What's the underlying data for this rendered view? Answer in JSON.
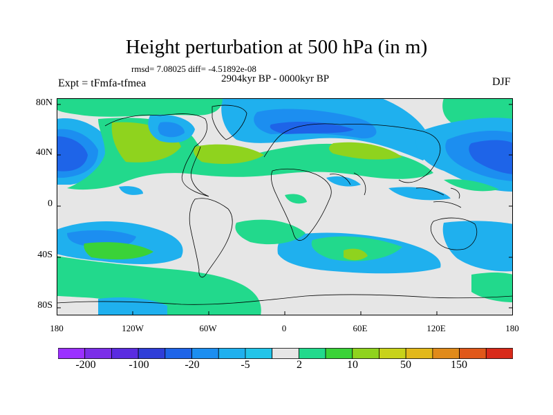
{
  "title": "Height perturbation at 500 hPa (in m)",
  "stats_line": "rmsd= 7.08025 diff= -4.51892e-08",
  "period": "2904kyr BP - 0000kyr BP",
  "experiment": "Expt = tFmfa-tfmea",
  "season": "DJF",
  "latitude_labels": [
    "80N",
    "40N",
    "0",
    "40S",
    "80S"
  ],
  "longitude_labels": [
    "180",
    "120W",
    "60W",
    "0",
    "60E",
    "120E",
    "180"
  ],
  "colorbar": {
    "labels": [
      "-200",
      "-100",
      "-20",
      "-5",
      "2",
      "10",
      "50",
      "150"
    ],
    "colors": [
      "#9b30ff",
      "#7b2ee8",
      "#5a2ce0",
      "#2f3ed8",
      "#1e64e8",
      "#1c8ef0",
      "#1fb0ee",
      "#22c4e8",
      "#e6e6e6",
      "#22d98c",
      "#3ad238",
      "#8fd31e",
      "#c8d21a",
      "#e2b81a",
      "#e08a1a",
      "#e0581a",
      "#d82a1a"
    ]
  },
  "palette": {
    "neutral": "#e6e6e6",
    "light_blue": "#1fb0ee",
    "mid_blue": "#1c8ef0",
    "blue": "#1e64e8",
    "deep_blue": "#2f3ed8",
    "teal_green": "#22d98c",
    "green": "#3ad238",
    "yellow_green": "#8fd31e",
    "coast": "#000000"
  }
}
